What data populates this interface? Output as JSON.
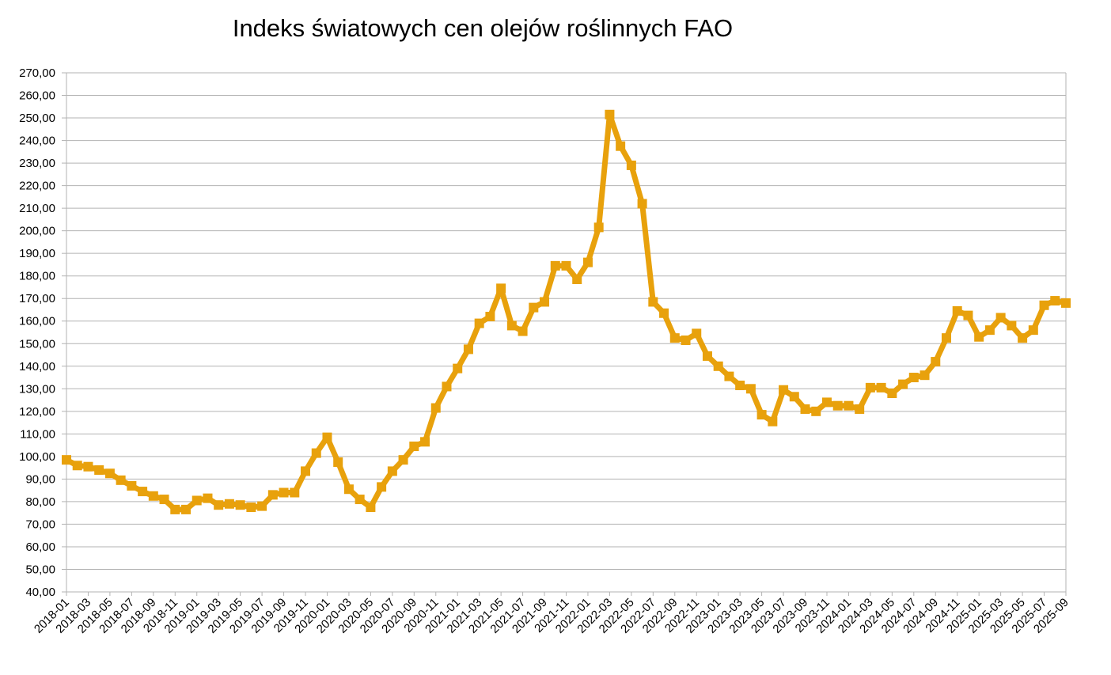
{
  "chart_data": {
    "type": "line",
    "title": "Indeks światowych cen olejów roślinnych FAO",
    "xlabel": "",
    "ylabel": "",
    "ylim": [
      40,
      270
    ],
    "y_tick_step": 10,
    "y_tick_labels": [
      "40,00",
      "50,00",
      "60,00",
      "70,00",
      "80,00",
      "90,00",
      "100,00",
      "110,00",
      "120,00",
      "130,00",
      "140,00",
      "150,00",
      "160,00",
      "170,00",
      "180,00",
      "190,00",
      "200,00",
      "210,00",
      "220,00",
      "230,00",
      "240,00",
      "250,00",
      "260,00",
      "270,00"
    ],
    "x_tick_labels": [
      "2018-01",
      "2018-03",
      "2018-05",
      "2018-07",
      "2018-09",
      "2018-11",
      "2019-01",
      "2019-03",
      "2019-05",
      "2019-07",
      "2019-09",
      "2019-11",
      "2020-01",
      "2020-03",
      "2020-05",
      "2020-07",
      "2020-09",
      "2020-11",
      "2021-01",
      "2021-03",
      "2021-05",
      "2021-07",
      "2021-09",
      "2021-11",
      "2022-01",
      "2022-03",
      "2022-05",
      "2022-07",
      "2022-09",
      "2022-11",
      "2023-01",
      "2023-03",
      "2023-05",
      "2023-07",
      "2023-09",
      "2023-11",
      "2024-01",
      "2024-03",
      "2024-05",
      "2024-07",
      "2024-09",
      "2024-11",
      "2025-01",
      "2025-03",
      "2025-05",
      "2025-07",
      "2025-09"
    ],
    "grid": true,
    "line_color": "#E8A10C",
    "grid_color": "#b3b3b3",
    "series": [
      {
        "values": [
          98.5,
          96.0,
          95.5,
          94.0,
          92.5,
          89.5,
          87.0,
          84.5,
          82.5,
          81.0,
          76.5,
          76.5,
          80.5,
          81.5,
          78.5,
          79.0,
          78.5,
          77.5,
          78.0,
          83.0,
          84.0,
          84.0,
          93.5,
          101.5,
          108.5,
          97.5,
          85.5,
          81.0,
          77.5,
          86.5,
          93.5,
          98.5,
          104.5,
          106.5,
          121.5,
          131.0,
          139.0,
          147.5,
          159.0,
          162.0,
          174.5,
          158.0,
          155.5,
          166.0,
          168.5,
          184.5,
          184.5,
          178.5,
          186.0,
          201.5,
          251.5,
          237.5,
          229.0,
          212.0,
          168.5,
          163.5,
          152.5,
          151.5,
          154.5,
          144.5,
          140.0,
          135.5,
          131.5,
          130.0,
          118.5,
          115.5,
          129.5,
          126.5,
          121.0,
          120.0,
          124.0,
          122.5,
          122.5,
          121.0,
          130.5,
          130.5,
          128.0,
          132.0,
          135.0,
          136.0,
          142.0,
          152.5,
          164.5,
          162.5,
          153.0,
          156.0,
          161.5,
          158.0,
          152.5,
          156.0,
          167.0,
          169.0,
          168.0
        ]
      }
    ]
  }
}
